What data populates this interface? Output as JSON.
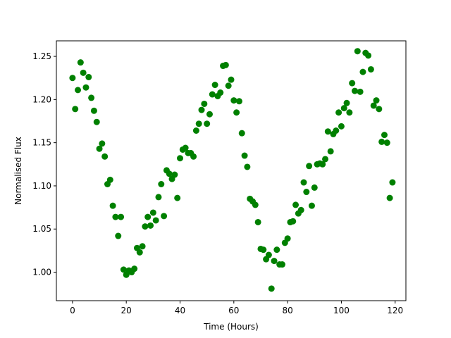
{
  "chart_data": {
    "type": "scatter",
    "xlabel": "Time (Hours)",
    "ylabel": "Normalised Flux",
    "xlim": [
      -6,
      124
    ],
    "ylim": [
      0.967,
      1.268
    ],
    "xticks": [
      0,
      20,
      40,
      60,
      80,
      100,
      120
    ],
    "yticks": [
      1.0,
      1.05,
      1.1,
      1.15,
      1.2,
      1.25
    ],
    "xtick_labels": [
      "0",
      "20",
      "40",
      "60",
      "80",
      "100",
      "120"
    ],
    "ytick_labels": [
      "1.00",
      "1.05",
      "1.10",
      "1.15",
      "1.20",
      "1.25"
    ],
    "grid": false,
    "marker_color": "#008000",
    "series": [
      {
        "points": [
          [
            0,
            1.225
          ],
          [
            1,
            1.189
          ],
          [
            2,
            1.211
          ],
          [
            3,
            1.243
          ],
          [
            4,
            1.231
          ],
          [
            5,
            1.214
          ],
          [
            6,
            1.226
          ],
          [
            7,
            1.202
          ],
          [
            8,
            1.187
          ],
          [
            9,
            1.174
          ],
          [
            10,
            1.143
          ],
          [
            11,
            1.149
          ],
          [
            12,
            1.134
          ],
          [
            13,
            1.102
          ],
          [
            14,
            1.107
          ],
          [
            15,
            1.077
          ],
          [
            16,
            1.064
          ],
          [
            17,
            1.042
          ],
          [
            18,
            1.064
          ],
          [
            19,
            1.003
          ],
          [
            20,
            0.997
          ],
          [
            21,
            1.002
          ],
          [
            22,
            1.0
          ],
          [
            23,
            1.004
          ],
          [
            24,
            1.028
          ],
          [
            25,
            1.023
          ],
          [
            26,
            1.03
          ],
          [
            27,
            1.053
          ],
          [
            28,
            1.064
          ],
          [
            29,
            1.054
          ],
          [
            30,
            1.069
          ],
          [
            31,
            1.06
          ],
          [
            32,
            1.087
          ],
          [
            33,
            1.102
          ],
          [
            34,
            1.065
          ],
          [
            35,
            1.118
          ],
          [
            36,
            1.114
          ],
          [
            37,
            1.108
          ],
          [
            38,
            1.113
          ],
          [
            39,
            1.086
          ],
          [
            40,
            1.132
          ],
          [
            41,
            1.142
          ],
          [
            42,
            1.144
          ],
          [
            43,
            1.138
          ],
          [
            44,
            1.138
          ],
          [
            45,
            1.134
          ],
          [
            46,
            1.164
          ],
          [
            47,
            1.172
          ],
          [
            48,
            1.188
          ],
          [
            49,
            1.195
          ],
          [
            50,
            1.172
          ],
          [
            51,
            1.183
          ],
          [
            52,
            1.206
          ],
          [
            53,
            1.217
          ],
          [
            54,
            1.204
          ],
          [
            55,
            1.208
          ],
          [
            56,
            1.239
          ],
          [
            57,
            1.24
          ],
          [
            58,
            1.216
          ],
          [
            59,
            1.223
          ],
          [
            60,
            1.199
          ],
          [
            61,
            1.185
          ],
          [
            62,
            1.198
          ],
          [
            63,
            1.161
          ],
          [
            64,
            1.135
          ],
          [
            65,
            1.122
          ],
          [
            66,
            1.085
          ],
          [
            67,
            1.082
          ],
          [
            68,
            1.078
          ],
          [
            69,
            1.058
          ],
          [
            70,
            1.027
          ],
          [
            71,
            1.026
          ],
          [
            72,
            1.015
          ],
          [
            73,
            1.02
          ],
          [
            74,
            0.981
          ],
          [
            75,
            1.013
          ],
          [
            76,
            1.026
          ],
          [
            77,
            1.009
          ],
          [
            78,
            1.009
          ],
          [
            79,
            1.034
          ],
          [
            80,
            1.039
          ],
          [
            81,
            1.058
          ],
          [
            82,
            1.059
          ],
          [
            83,
            1.078
          ],
          [
            84,
            1.068
          ],
          [
            85,
            1.072
          ],
          [
            86,
            1.104
          ],
          [
            87,
            1.093
          ],
          [
            88,
            1.123
          ],
          [
            89,
            1.077
          ],
          [
            90,
            1.098
          ],
          [
            91,
            1.125
          ],
          [
            92,
            1.126
          ],
          [
            93,
            1.125
          ],
          [
            94,
            1.131
          ],
          [
            95,
            1.163
          ],
          [
            96,
            1.14
          ],
          [
            97,
            1.16
          ],
          [
            98,
            1.164
          ],
          [
            99,
            1.185
          ],
          [
            100,
            1.169
          ],
          [
            101,
            1.19
          ],
          [
            102,
            1.196
          ],
          [
            103,
            1.185
          ],
          [
            104,
            1.219
          ],
          [
            105,
            1.21
          ],
          [
            106,
            1.256
          ],
          [
            107,
            1.209
          ],
          [
            108,
            1.232
          ],
          [
            109,
            1.254
          ],
          [
            110,
            1.251
          ],
          [
            111,
            1.235
          ],
          [
            112,
            1.193
          ],
          [
            113,
            1.199
          ],
          [
            114,
            1.189
          ],
          [
            115,
            1.151
          ],
          [
            116,
            1.159
          ],
          [
            117,
            1.15
          ],
          [
            118,
            1.086
          ],
          [
            119,
            1.104
          ]
        ]
      }
    ]
  }
}
